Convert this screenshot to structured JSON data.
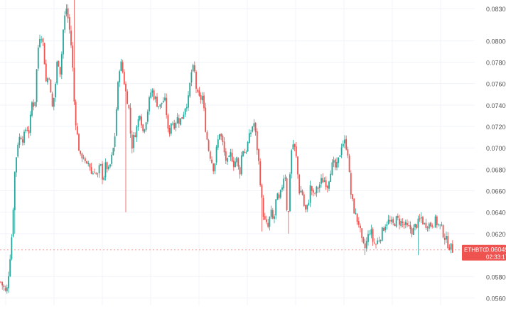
{
  "colors": {
    "up": "#26a69a",
    "down": "#ef5350",
    "grid": "#f0f3fa",
    "axis_text": "#555555",
    "price_line": "#ef5350",
    "tag_bg": "#ef5350",
    "tag_text": "#ffffff"
  },
  "price_tag": {
    "symbol": "ETHBTC",
    "price": "0.06049",
    "countdown": "02:33:17"
  },
  "chart_data": {
    "type": "candlestick",
    "symbol": "ETHBTC",
    "y_ticks": [
      "0.08300",
      "0.08000",
      "0.07800",
      "0.07600",
      "0.07400",
      "0.07200",
      "0.07000",
      "0.06800",
      "0.06600",
      "0.06400",
      "0.06200",
      "0.05800",
      "0.05600"
    ],
    "ylim": [
      0.0553,
      0.0838
    ],
    "grid": true,
    "last_price": 0.06049,
    "close_path": [
      [
        0,
        0.0575
      ],
      [
        4,
        0.057
      ],
      [
        8,
        0.0563
      ],
      [
        12,
        0.059
      ],
      [
        16,
        0.0622
      ],
      [
        20,
        0.068
      ],
      [
        24,
        0.0705
      ],
      [
        28,
        0.0712
      ],
      [
        32,
        0.0708
      ],
      [
        36,
        0.072
      ],
      [
        40,
        0.0715
      ],
      [
        44,
        0.0742
      ],
      [
        48,
        0.074
      ],
      [
        52,
        0.079
      ],
      [
        56,
        0.081
      ],
      [
        60,
        0.0795
      ],
      [
        64,
        0.076
      ],
      [
        68,
        0.077
      ],
      [
        72,
        0.0735
      ],
      [
        76,
        0.0752
      ],
      [
        80,
        0.0785
      ],
      [
        84,
        0.077
      ],
      [
        88,
        0.081
      ],
      [
        92,
        0.0832
      ],
      [
        96,
        0.0815
      ],
      [
        100,
        0.079
      ],
      [
        104,
        0.0735
      ],
      [
        108,
        0.071
      ],
      [
        112,
        0.069
      ],
      [
        116,
        0.0695
      ],
      [
        120,
        0.068
      ],
      [
        124,
        0.0688
      ],
      [
        128,
        0.0675
      ],
      [
        132,
        0.068
      ],
      [
        136,
        0.0672
      ],
      [
        140,
        0.0685
      ],
      [
        144,
        0.067
      ],
      [
        148,
        0.0685
      ],
      [
        152,
        0.0678
      ],
      [
        156,
        0.069
      ],
      [
        160,
        0.0705
      ],
      [
        164,
        0.075
      ],
      [
        168,
        0.0782
      ],
      [
        172,
        0.077
      ],
      [
        176,
        0.0752
      ],
      [
        180,
        0.074
      ],
      [
        184,
        0.07
      ],
      [
        188,
        0.0712
      ],
      [
        192,
        0.072
      ],
      [
        196,
        0.0735
      ],
      [
        200,
        0.0715
      ],
      [
        204,
        0.0725
      ],
      [
        208,
        0.074
      ],
      [
        212,
        0.0755
      ],
      [
        216,
        0.0748
      ],
      [
        220,
        0.0742
      ],
      [
        224,
        0.0738
      ],
      [
        228,
        0.0745
      ],
      [
        232,
        0.0742
      ],
      [
        236,
        0.071
      ],
      [
        240,
        0.0725
      ],
      [
        244,
        0.0722
      ],
      [
        248,
        0.0728
      ],
      [
        252,
        0.0725
      ],
      [
        256,
        0.073
      ],
      [
        260,
        0.074
      ],
      [
        264,
        0.0745
      ],
      [
        268,
        0.077
      ],
      [
        272,
        0.0775
      ],
      [
        276,
        0.075
      ],
      [
        280,
        0.0745
      ],
      [
        284,
        0.0748
      ],
      [
        288,
        0.072
      ],
      [
        292,
        0.07
      ],
      [
        296,
        0.069
      ],
      [
        300,
        0.068
      ],
      [
        304,
        0.07
      ],
      [
        308,
        0.0715
      ],
      [
        312,
        0.0705
      ],
      [
        316,
        0.069
      ],
      [
        320,
        0.0685
      ],
      [
        324,
        0.0695
      ],
      [
        328,
        0.0685
      ],
      [
        332,
        0.069
      ],
      [
        336,
        0.0675
      ],
      [
        340,
        0.07
      ],
      [
        344,
        0.0695
      ],
      [
        348,
        0.0705
      ],
      [
        352,
        0.0715
      ],
      [
        356,
        0.0725
      ],
      [
        360,
        0.0705
      ],
      [
        364,
        0.068
      ],
      [
        368,
        0.0645
      ],
      [
        372,
        0.063
      ],
      [
        376,
        0.0625
      ],
      [
        380,
        0.064
      ],
      [
        384,
        0.063
      ],
      [
        388,
        0.0655
      ],
      [
        392,
        0.065
      ],
      [
        396,
        0.0665
      ],
      [
        400,
        0.068
      ],
      [
        404,
        0.0625
      ],
      [
        408,
        0.0695
      ],
      [
        412,
        0.0705
      ],
      [
        416,
        0.069
      ],
      [
        420,
        0.066
      ],
      [
        424,
        0.066
      ],
      [
        428,
        0.064
      ],
      [
        432,
        0.0645
      ],
      [
        436,
        0.0665
      ],
      [
        440,
        0.0655
      ],
      [
        444,
        0.066
      ],
      [
        448,
        0.0665
      ],
      [
        452,
        0.067
      ],
      [
        456,
        0.067
      ],
      [
        460,
        0.0665
      ],
      [
        464,
        0.068
      ],
      [
        468,
        0.0685
      ],
      [
        472,
        0.068
      ],
      [
        476,
        0.069
      ],
      [
        480,
        0.0705
      ],
      [
        484,
        0.0705
      ],
      [
        488,
        0.07
      ],
      [
        492,
        0.066
      ],
      [
        496,
        0.0645
      ],
      [
        500,
        0.0635
      ],
      [
        504,
        0.063
      ],
      [
        508,
        0.0612
      ],
      [
        512,
        0.0605
      ],
      [
        516,
        0.0615
      ],
      [
        520,
        0.0625
      ],
      [
        524,
        0.0612
      ],
      [
        528,
        0.061
      ],
      [
        532,
        0.0615
      ],
      [
        536,
        0.062
      ],
      [
        540,
        0.0628
      ],
      [
        544,
        0.0632
      ],
      [
        548,
        0.063
      ],
      [
        552,
        0.0628
      ],
      [
        556,
        0.0633
      ],
      [
        560,
        0.0632
      ],
      [
        564,
        0.063
      ],
      [
        568,
        0.0628
      ],
      [
        572,
        0.0625
      ],
      [
        576,
        0.0625
      ],
      [
        580,
        0.0622
      ],
      [
        584,
        0.0628
      ],
      [
        588,
        0.063
      ],
      [
        592,
        0.0635
      ],
      [
        596,
        0.0628
      ],
      [
        600,
        0.063
      ],
      [
        604,
        0.0628
      ],
      [
        608,
        0.063
      ],
      [
        612,
        0.0632
      ],
      [
        616,
        0.0628
      ],
      [
        620,
        0.0625
      ],
      [
        624,
        0.0618
      ],
      [
        628,
        0.0612
      ],
      [
        632,
        0.0608
      ],
      [
        636,
        0.0605
      ]
    ],
    "spikes": [
      {
        "x": 20,
        "low": 0.062
      },
      {
        "x": 104,
        "high": 0.0838
      },
      {
        "x": 176,
        "low": 0.064
      },
      {
        "x": 368,
        "low": 0.0622
      },
      {
        "x": 404,
        "low": 0.062
      },
      {
        "x": 484,
        "high": 0.071
      },
      {
        "x": 512,
        "low": 0.06
      },
      {
        "x": 588,
        "low": 0.06
      },
      {
        "x": 592,
        "high": 0.064
      }
    ]
  }
}
